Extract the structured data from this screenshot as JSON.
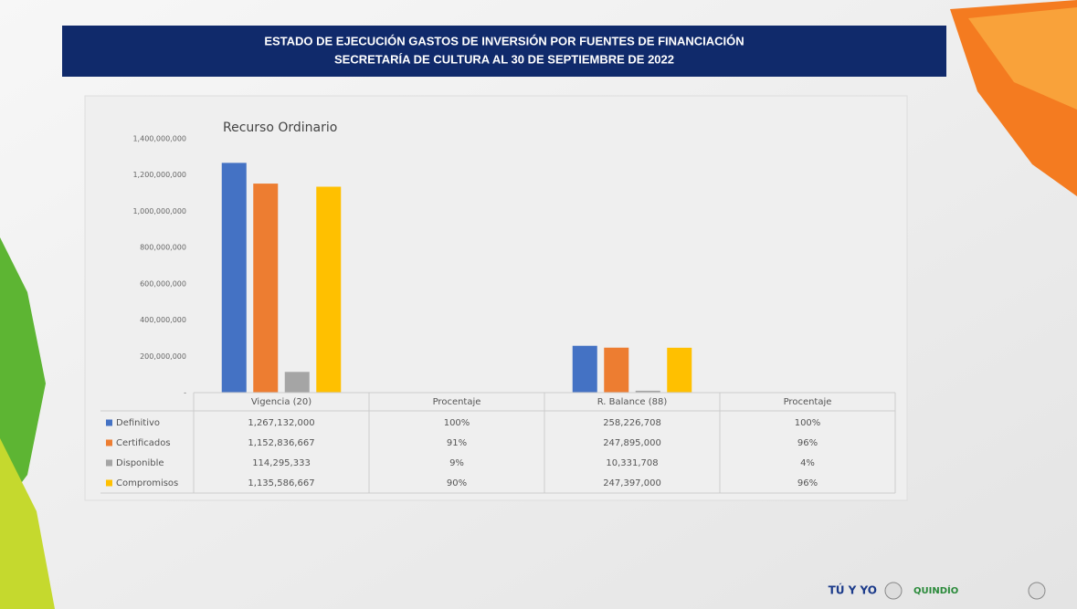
{
  "header": {
    "title_line1": "ESTADO DE EJECUCIÓN GASTOS DE INVERSIÓN POR FUENTES DE FINANCIACIÓN",
    "title_line2": "SECRETARÍA DE CULTURA  AL 30 DE SEPTIEMBRE DE 2022"
  },
  "logos": [
    "TÚ Y YO",
    "QUINDÍO"
  ],
  "chart_data": {
    "type": "bar",
    "title": "Recurso Ordinario",
    "categories": [
      "Vigencia (20)",
      "Procentaje",
      "R. Balance (88)",
      "Procentaje"
    ],
    "series": [
      {
        "name": "Definitivo",
        "color": "#4472c4",
        "values": [
          1267132000,
          100,
          258226708,
          100
        ],
        "value_labels": [
          "1,267,132,000",
          "100%",
          "258,226,708",
          "100%"
        ]
      },
      {
        "name": "Certificados",
        "color": "#ed7d31",
        "values": [
          1152836667,
          91,
          247895000,
          96
        ],
        "value_labels": [
          "1,152,836,667",
          "91%",
          "247,895,000",
          "96%"
        ]
      },
      {
        "name": "Disponible",
        "color": "#a5a5a5",
        "values": [
          114295333,
          9,
          10331708,
          4
        ],
        "value_labels": [
          "114,295,333",
          "9%",
          "10,331,708",
          "4%"
        ]
      },
      {
        "name": "Compromisos",
        "color": "#ffc000",
        "values": [
          1135586667,
          90,
          247397000,
          96
        ],
        "value_labels": [
          "1,135,586,667",
          "90%",
          "247,397,000",
          "96%"
        ]
      }
    ],
    "ylim": [
      0,
      1400000000
    ],
    "yticks": [
      {
        "value": 0,
        "label": "-"
      },
      {
        "value": 200000000,
        "label": "200,000,000"
      },
      {
        "value": 400000000,
        "label": "400,000,000"
      },
      {
        "value": 600000000,
        "label": "600,000,000"
      },
      {
        "value": 800000000,
        "label": "800,000,000"
      },
      {
        "value": 1000000000,
        "label": "1,000,000,000"
      },
      {
        "value": 1200000000,
        "label": "1,200,000,000"
      },
      {
        "value": 1400000000,
        "label": "1,400,000,000"
      }
    ],
    "grid": false
  }
}
